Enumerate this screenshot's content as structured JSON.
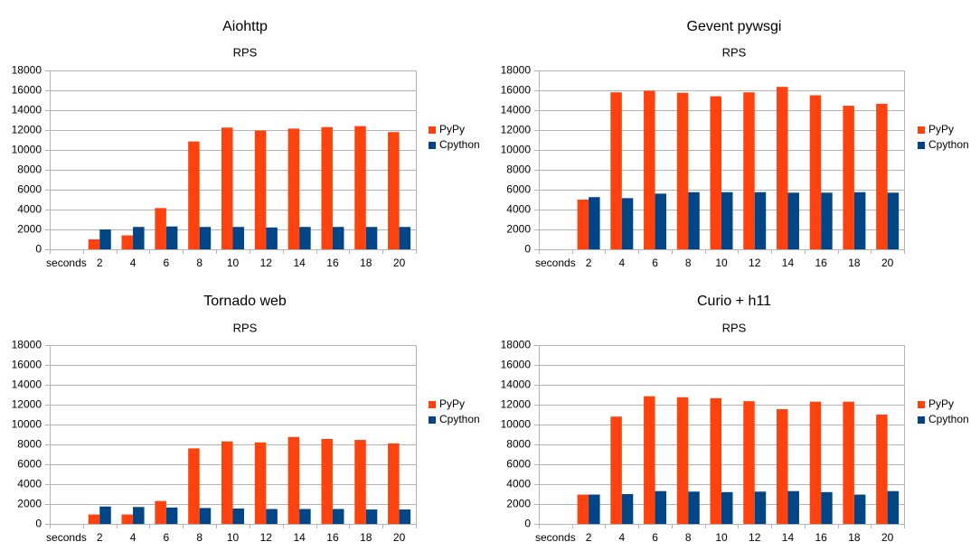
{
  "chart_data": [
    {
      "type": "bar",
      "title": "Aiohttp",
      "subtitle": "RPS",
      "categories": [
        "seconds",
        "2",
        "4",
        "6",
        "8",
        "10",
        "12",
        "14",
        "16",
        "18",
        "20"
      ],
      "series": [
        {
          "name": "PyPy",
          "color": "#ff420e",
          "values": [
            null,
            1000,
            1400,
            4150,
            10850,
            12250,
            11950,
            12150,
            12300,
            12400,
            11800
          ]
        },
        {
          "name": "Cpython",
          "color": "#004586",
          "values": [
            null,
            2000,
            2250,
            2300,
            2250,
            2250,
            2200,
            2250,
            2250,
            2250,
            2250
          ]
        }
      ],
      "ylim": [
        0,
        18000
      ],
      "yticks": [
        0,
        2000,
        4000,
        6000,
        8000,
        10000,
        12000,
        14000,
        16000,
        18000
      ],
      "grid": true,
      "legend": "right"
    },
    {
      "type": "bar",
      "title": "Gevent pywsgi",
      "subtitle": "RPS",
      "categories": [
        "seconds",
        "2",
        "4",
        "6",
        "8",
        "10",
        "12",
        "14",
        "16",
        "18",
        "20"
      ],
      "series": [
        {
          "name": "PyPy",
          "color": "#ff420e",
          "values": [
            null,
            5000,
            15800,
            15950,
            15750,
            15400,
            15800,
            16350,
            15500,
            14450,
            14650
          ]
        },
        {
          "name": "Cpython",
          "color": "#004586",
          "values": [
            null,
            5250,
            5150,
            5600,
            5750,
            5750,
            5750,
            5700,
            5700,
            5750,
            5700
          ]
        }
      ],
      "ylim": [
        0,
        18000
      ],
      "yticks": [
        0,
        2000,
        4000,
        6000,
        8000,
        10000,
        12000,
        14000,
        16000,
        18000
      ],
      "grid": true,
      "legend": "right"
    },
    {
      "type": "bar",
      "title": "Tornado web",
      "subtitle": "RPS",
      "categories": [
        "seconds",
        "2",
        "4",
        "6",
        "8",
        "10",
        "12",
        "14",
        "16",
        "18",
        "20"
      ],
      "series": [
        {
          "name": "PyPy",
          "color": "#ff420e",
          "values": [
            null,
            950,
            950,
            2300,
            7600,
            8300,
            8200,
            8750,
            8550,
            8450,
            8100
          ]
        },
        {
          "name": "Cpython",
          "color": "#004586",
          "values": [
            null,
            1750,
            1700,
            1650,
            1600,
            1550,
            1500,
            1500,
            1500,
            1450,
            1450
          ]
        }
      ],
      "ylim": [
        0,
        18000
      ],
      "yticks": [
        0,
        2000,
        4000,
        6000,
        8000,
        10000,
        12000,
        14000,
        16000,
        18000
      ],
      "grid": true,
      "legend": "right"
    },
    {
      "type": "bar",
      "title": "Curio + h11",
      "subtitle": "RPS",
      "categories": [
        "seconds",
        "2",
        "4",
        "6",
        "8",
        "10",
        "12",
        "14",
        "16",
        "18",
        "20"
      ],
      "series": [
        {
          "name": "PyPy",
          "color": "#ff420e",
          "values": [
            null,
            2950,
            10800,
            12850,
            12750,
            12650,
            12350,
            11550,
            12300,
            12300,
            11000
          ]
        },
        {
          "name": "Cpython",
          "color": "#004586",
          "values": [
            null,
            2950,
            3000,
            3300,
            3250,
            3200,
            3250,
            3300,
            3200,
            2950,
            3300
          ]
        }
      ],
      "ylim": [
        0,
        18000
      ],
      "yticks": [
        0,
        2000,
        4000,
        6000,
        8000,
        10000,
        12000,
        14000,
        16000,
        18000
      ],
      "grid": true,
      "legend": "right"
    }
  ]
}
